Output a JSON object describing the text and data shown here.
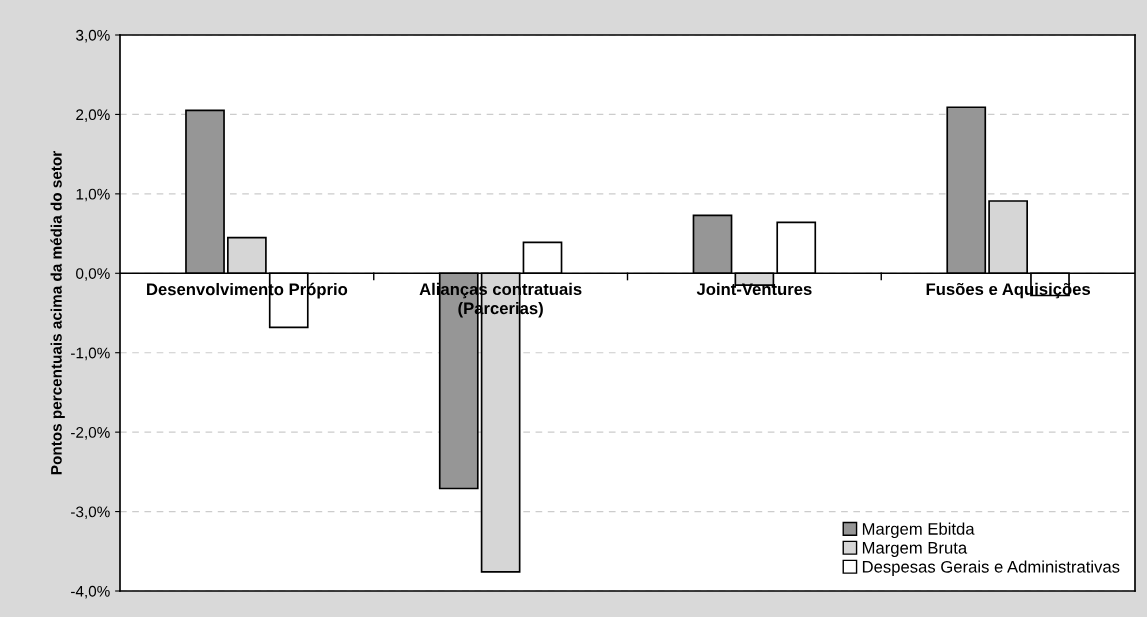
{
  "chart_data": {
    "type": "bar",
    "ylabel": "Pontos percentuais acima da média do setor",
    "categories": [
      "Desenvolvimento Próprio",
      "Alianças contratuais\n(Parcerias)",
      "Joint-Ventures",
      "Fusões e Aquisições"
    ],
    "series": [
      {
        "name": "Margem Ebitda",
        "color": "#969696",
        "values": [
          2.05,
          -2.71,
          0.73,
          2.09
        ]
      },
      {
        "name": "Margem Bruta",
        "color": "#d6d6d6",
        "values": [
          0.45,
          -3.76,
          -0.15,
          0.91
        ]
      },
      {
        "name": "Despesas Gerais e Administrativas",
        "color": "#ffffff",
        "values": [
          -0.68,
          0.39,
          0.64,
          -0.28
        ]
      }
    ],
    "ylim": [
      -4,
      3
    ],
    "yticks": [
      {
        "value": -4,
        "label": "-4,0%"
      },
      {
        "value": -3,
        "label": "-3,0%"
      },
      {
        "value": -2,
        "label": "-2,0%"
      },
      {
        "value": -1,
        "label": "-1,0%"
      },
      {
        "value": 0,
        "label": "0,0%"
      },
      {
        "value": 1,
        "label": "1,0%"
      },
      {
        "value": 2,
        "label": "2,0%"
      },
      {
        "value": 3,
        "label": "3,0%"
      }
    ],
    "grid": "y",
    "legend": "bottom right"
  }
}
